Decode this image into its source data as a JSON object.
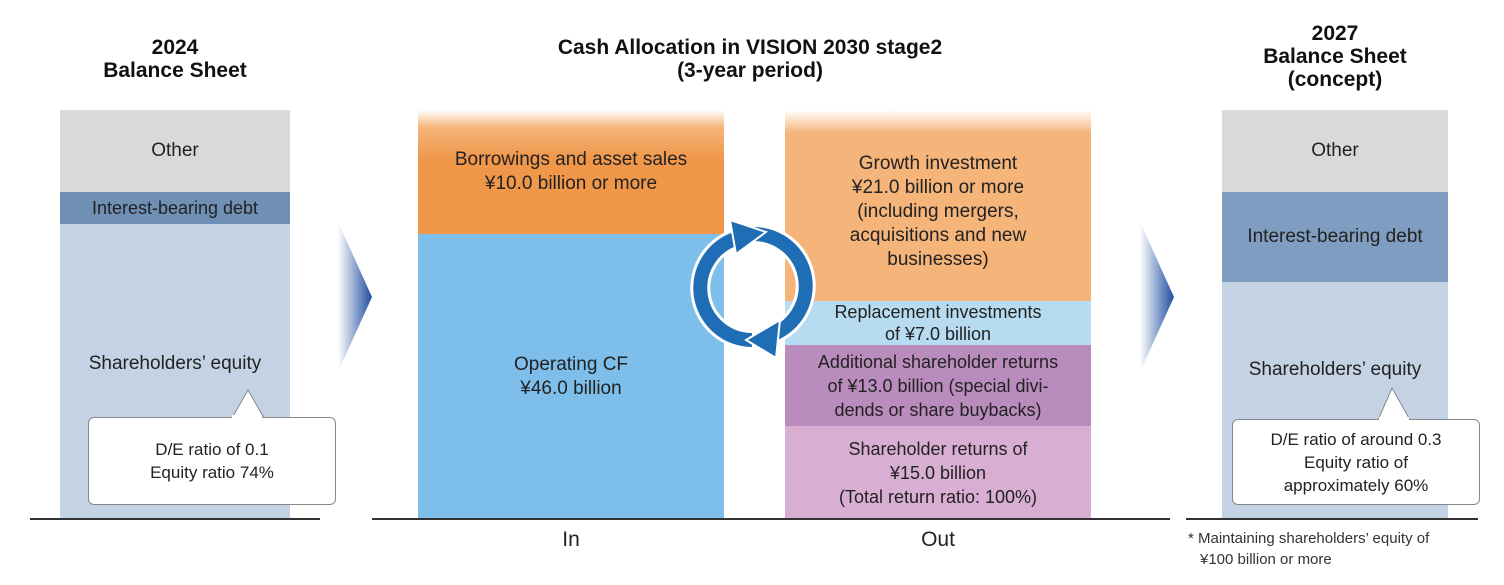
{
  "left": {
    "title_line1": "2024",
    "title_line2": "Balance Sheet",
    "other": "Other",
    "debt": "Interest-bearing debt",
    "equity": "Shareholders’ equity",
    "callout_line1": "D/E ratio of 0.1",
    "callout_line2": "Equity ratio 74%"
  },
  "center": {
    "title_line1": "Cash Allocation in VISION 2030 stage2",
    "title_line2": "(3-year period)",
    "in": {
      "borrow_line1": "Borrowings and asset sales",
      "borrow_line2": "¥10.0 billion or more",
      "opcf_line1": "Operating CF",
      "opcf_line2": "¥46.0 billion"
    },
    "out": {
      "growth_line1": "Growth investment",
      "growth_line2": "¥21.0 billion or more",
      "growth_line3": "(including mergers,",
      "growth_line4": "acquisitions and new",
      "growth_line5": "businesses)",
      "replace_line1": "Replacement investments",
      "replace_line2": "of ¥7.0 billion",
      "additional_line1": "Additional shareholder returns",
      "additional_line2": "of ¥13.0 billion (special divi-",
      "additional_line3": "dends or share buybacks)",
      "returns_line1": "Shareholder returns of",
      "returns_line2": "¥15.0 billion",
      "returns_line3": "(Total return ratio: 100%)"
    },
    "label_in": "In",
    "label_out": "Out"
  },
  "right": {
    "title_line1": "2027",
    "title_line2": "Balance Sheet",
    "title_line3": "(concept)",
    "other": "Other",
    "debt": "Interest-bearing debt",
    "equity": "Shareholders’ equity",
    "callout_line1": "D/E ratio of around 0.3",
    "callout_line2": "Equity ratio of",
    "callout_line3": "approximately 60%",
    "note_line1": "* Maintaining shareholders’ equity of",
    "note_line2": "¥100 billion or more"
  },
  "colors": {
    "other": "#d9d9d9",
    "debt_left": "#6f8fb5",
    "debt_right": "#7e9dc0",
    "equity": "#c4d3e4",
    "borrow": "#f0974a",
    "opcf": "#7dbfea",
    "growth": "#f5b57a",
    "replace": "#b7dcf2",
    "additional": "#b98cbd",
    "returns": "#d9aed3",
    "arrow": "#1e6db5"
  }
}
